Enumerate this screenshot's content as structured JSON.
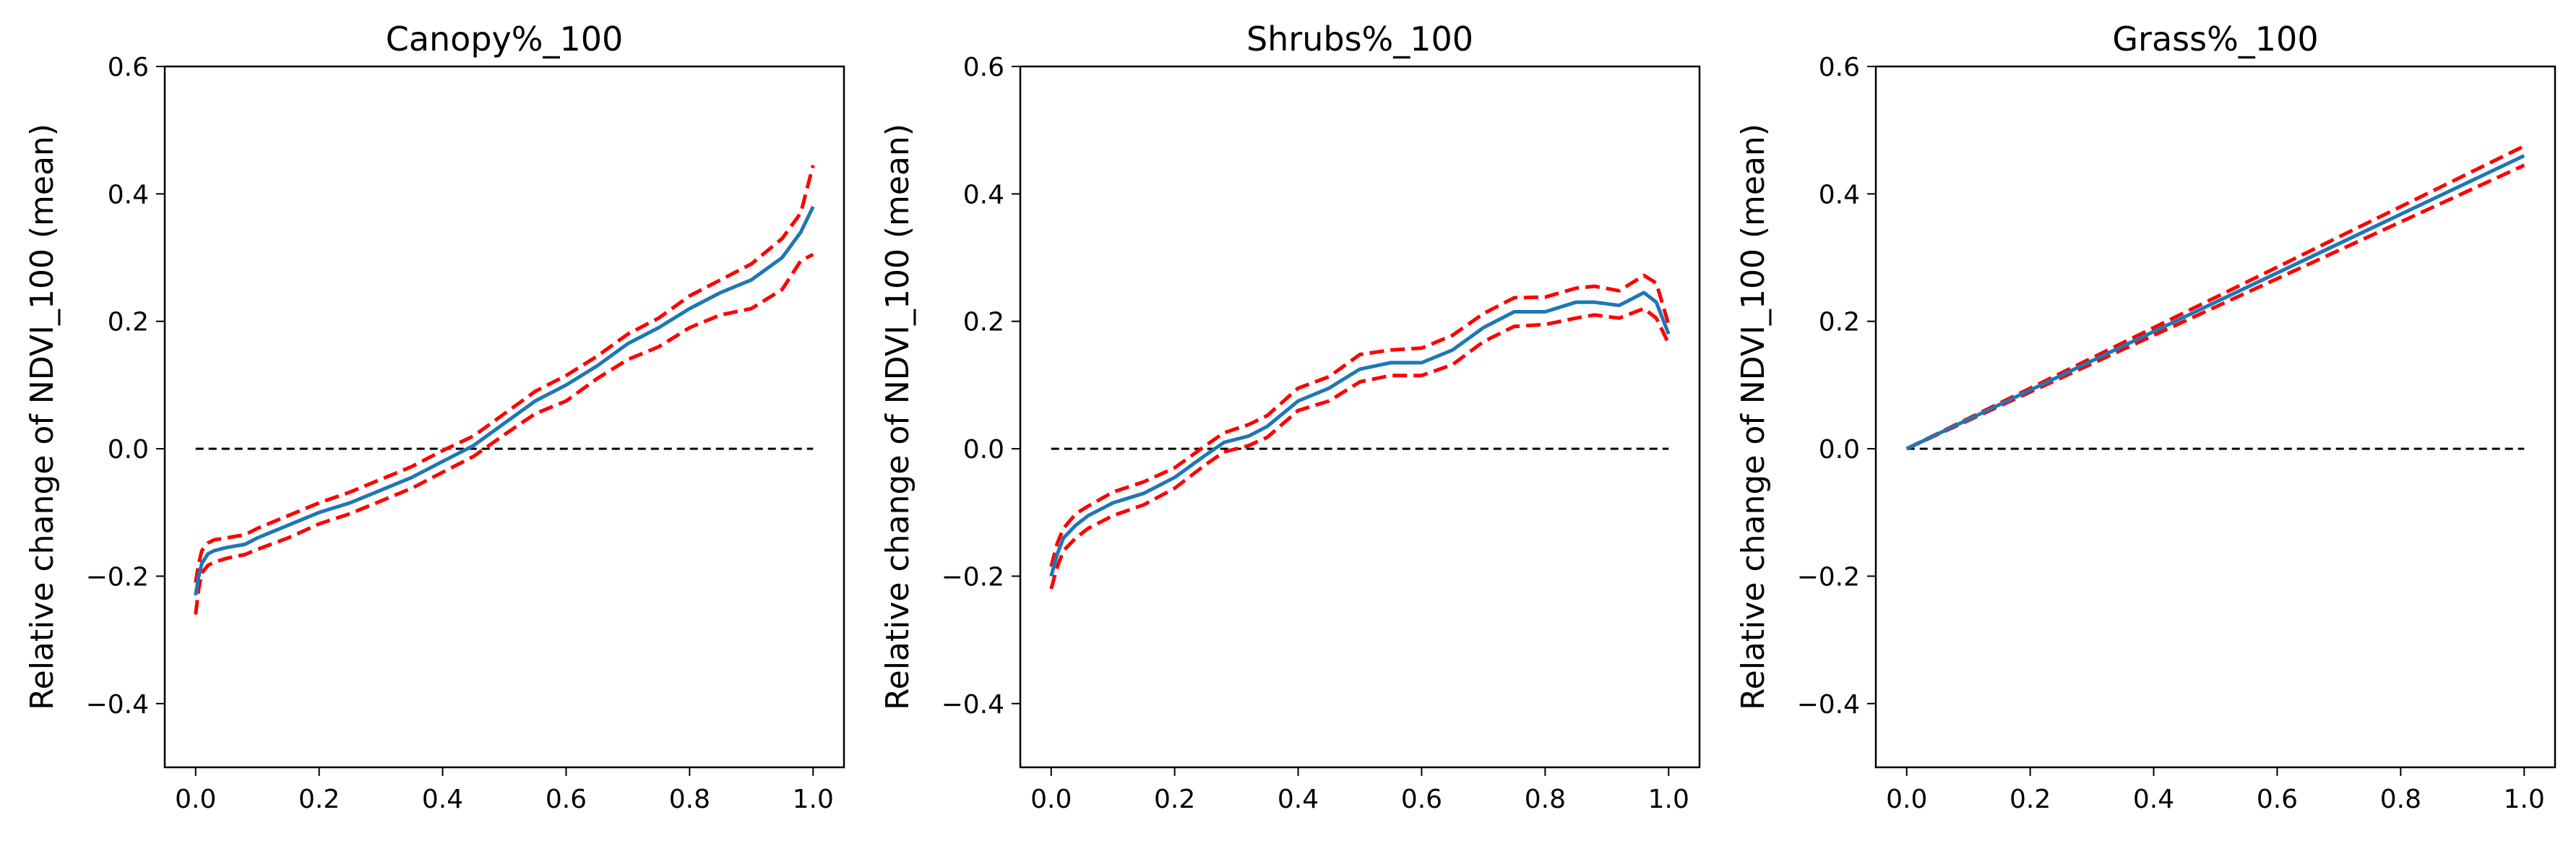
{
  "figure": {
    "colors": {
      "mean": "#1f77b4",
      "ci": "#ff0000",
      "zero": "#000000"
    }
  },
  "chart_data": [
    {
      "type": "line",
      "title": "Canopy%_100",
      "xlabel": "",
      "ylabel": "Relative change of NDVI_100 (mean)",
      "xlim": [
        -0.05,
        1.05
      ],
      "ylim": [
        -0.5,
        0.6
      ],
      "xticks": [
        "0.0",
        "0.2",
        "0.4",
        "0.6",
        "0.8",
        "1.0"
      ],
      "yticks": [
        "−0.4",
        "−0.2",
        "0.0",
        "0.2",
        "0.4",
        "0.6"
      ],
      "zero_line": true,
      "x": [
        0.0,
        0.005,
        0.01,
        0.02,
        0.03,
        0.05,
        0.08,
        0.1,
        0.15,
        0.2,
        0.25,
        0.3,
        0.35,
        0.4,
        0.45,
        0.5,
        0.55,
        0.6,
        0.65,
        0.7,
        0.75,
        0.8,
        0.85,
        0.9,
        0.95,
        0.98,
        1.0
      ],
      "series": [
        {
          "role": "mean",
          "style": "solid",
          "values": [
            -0.23,
            -0.2,
            -0.18,
            -0.165,
            -0.16,
            -0.155,
            -0.15,
            -0.14,
            -0.12,
            -0.1,
            -0.085,
            -0.065,
            -0.045,
            -0.02,
            0.005,
            0.04,
            0.075,
            0.1,
            0.13,
            0.165,
            0.19,
            0.22,
            0.245,
            0.265,
            0.3,
            0.34,
            0.38
          ]
        },
        {
          "role": "upper",
          "style": "dashed",
          "values": [
            -0.21,
            -0.18,
            -0.16,
            -0.148,
            -0.143,
            -0.14,
            -0.135,
            -0.125,
            -0.105,
            -0.085,
            -0.068,
            -0.048,
            -0.028,
            -0.003,
            0.02,
            0.055,
            0.09,
            0.115,
            0.145,
            0.18,
            0.205,
            0.24,
            0.265,
            0.29,
            0.33,
            0.37,
            0.445
          ]
        },
        {
          "role": "lower",
          "style": "dashed",
          "values": [
            -0.26,
            -0.22,
            -0.195,
            -0.183,
            -0.178,
            -0.172,
            -0.166,
            -0.158,
            -0.14,
            -0.118,
            -0.102,
            -0.082,
            -0.062,
            -0.037,
            -0.012,
            0.022,
            0.055,
            0.075,
            0.11,
            0.14,
            0.16,
            0.19,
            0.21,
            0.22,
            0.25,
            0.295,
            0.305
          ]
        }
      ]
    },
    {
      "type": "line",
      "title": "Shrubs%_100",
      "xlabel": "",
      "ylabel": "Relative change of NDVI_100 (mean)",
      "xlim": [
        -0.05,
        1.05
      ],
      "ylim": [
        -0.5,
        0.6
      ],
      "xticks": [
        "0.0",
        "0.2",
        "0.4",
        "0.6",
        "0.8",
        "1.0"
      ],
      "yticks": [
        "−0.4",
        "−0.2",
        "0.0",
        "0.2",
        "0.4",
        "0.6"
      ],
      "zero_line": true,
      "x": [
        0.0,
        0.01,
        0.02,
        0.04,
        0.06,
        0.1,
        0.15,
        0.2,
        0.25,
        0.28,
        0.32,
        0.35,
        0.4,
        0.45,
        0.5,
        0.55,
        0.6,
        0.65,
        0.7,
        0.75,
        0.8,
        0.85,
        0.88,
        0.92,
        0.96,
        0.98,
        1.0
      ],
      "series": [
        {
          "role": "mean",
          "style": "solid",
          "values": [
            -0.2,
            -0.165,
            -0.14,
            -0.12,
            -0.105,
            -0.085,
            -0.07,
            -0.045,
            -0.01,
            0.01,
            0.02,
            0.035,
            0.075,
            0.095,
            0.125,
            0.135,
            0.135,
            0.155,
            0.19,
            0.215,
            0.215,
            0.23,
            0.23,
            0.225,
            0.245,
            0.23,
            0.18
          ]
        },
        {
          "role": "upper",
          "style": "dashed",
          "values": [
            -0.185,
            -0.148,
            -0.125,
            -0.102,
            -0.09,
            -0.068,
            -0.052,
            -0.03,
            0.005,
            0.025,
            0.038,
            0.052,
            0.095,
            0.113,
            0.148,
            0.155,
            0.158,
            0.178,
            0.212,
            0.237,
            0.238,
            0.252,
            0.255,
            0.248,
            0.272,
            0.26,
            0.195
          ]
        },
        {
          "role": "lower",
          "style": "dashed",
          "values": [
            -0.22,
            -0.185,
            -0.16,
            -0.14,
            -0.125,
            -0.105,
            -0.088,
            -0.062,
            -0.025,
            -0.005,
            0.005,
            0.018,
            0.06,
            0.075,
            0.105,
            0.115,
            0.115,
            0.132,
            0.168,
            0.192,
            0.195,
            0.205,
            0.21,
            0.205,
            0.22,
            0.205,
            0.165
          ]
        }
      ]
    },
    {
      "type": "line",
      "title": "Grass%_100",
      "xlabel": "",
      "ylabel": "Relative change of NDVI_100 (mean)",
      "xlim": [
        -0.05,
        1.05
      ],
      "ylim": [
        -0.5,
        0.6
      ],
      "xticks": [
        "0.0",
        "0.2",
        "0.4",
        "0.6",
        "0.8",
        "1.0"
      ],
      "yticks": [
        "−0.4",
        "−0.2",
        "0.0",
        "0.2",
        "0.4",
        "0.6"
      ],
      "zero_line": true,
      "x": [
        0.0,
        1.0
      ],
      "series": [
        {
          "role": "mean",
          "style": "solid",
          "values": [
            0.0,
            0.46
          ]
        },
        {
          "role": "upper",
          "style": "dashed",
          "values": [
            0.0,
            0.475
          ]
        },
        {
          "role": "lower",
          "style": "dashed",
          "values": [
            0.0,
            0.445
          ]
        }
      ]
    }
  ]
}
